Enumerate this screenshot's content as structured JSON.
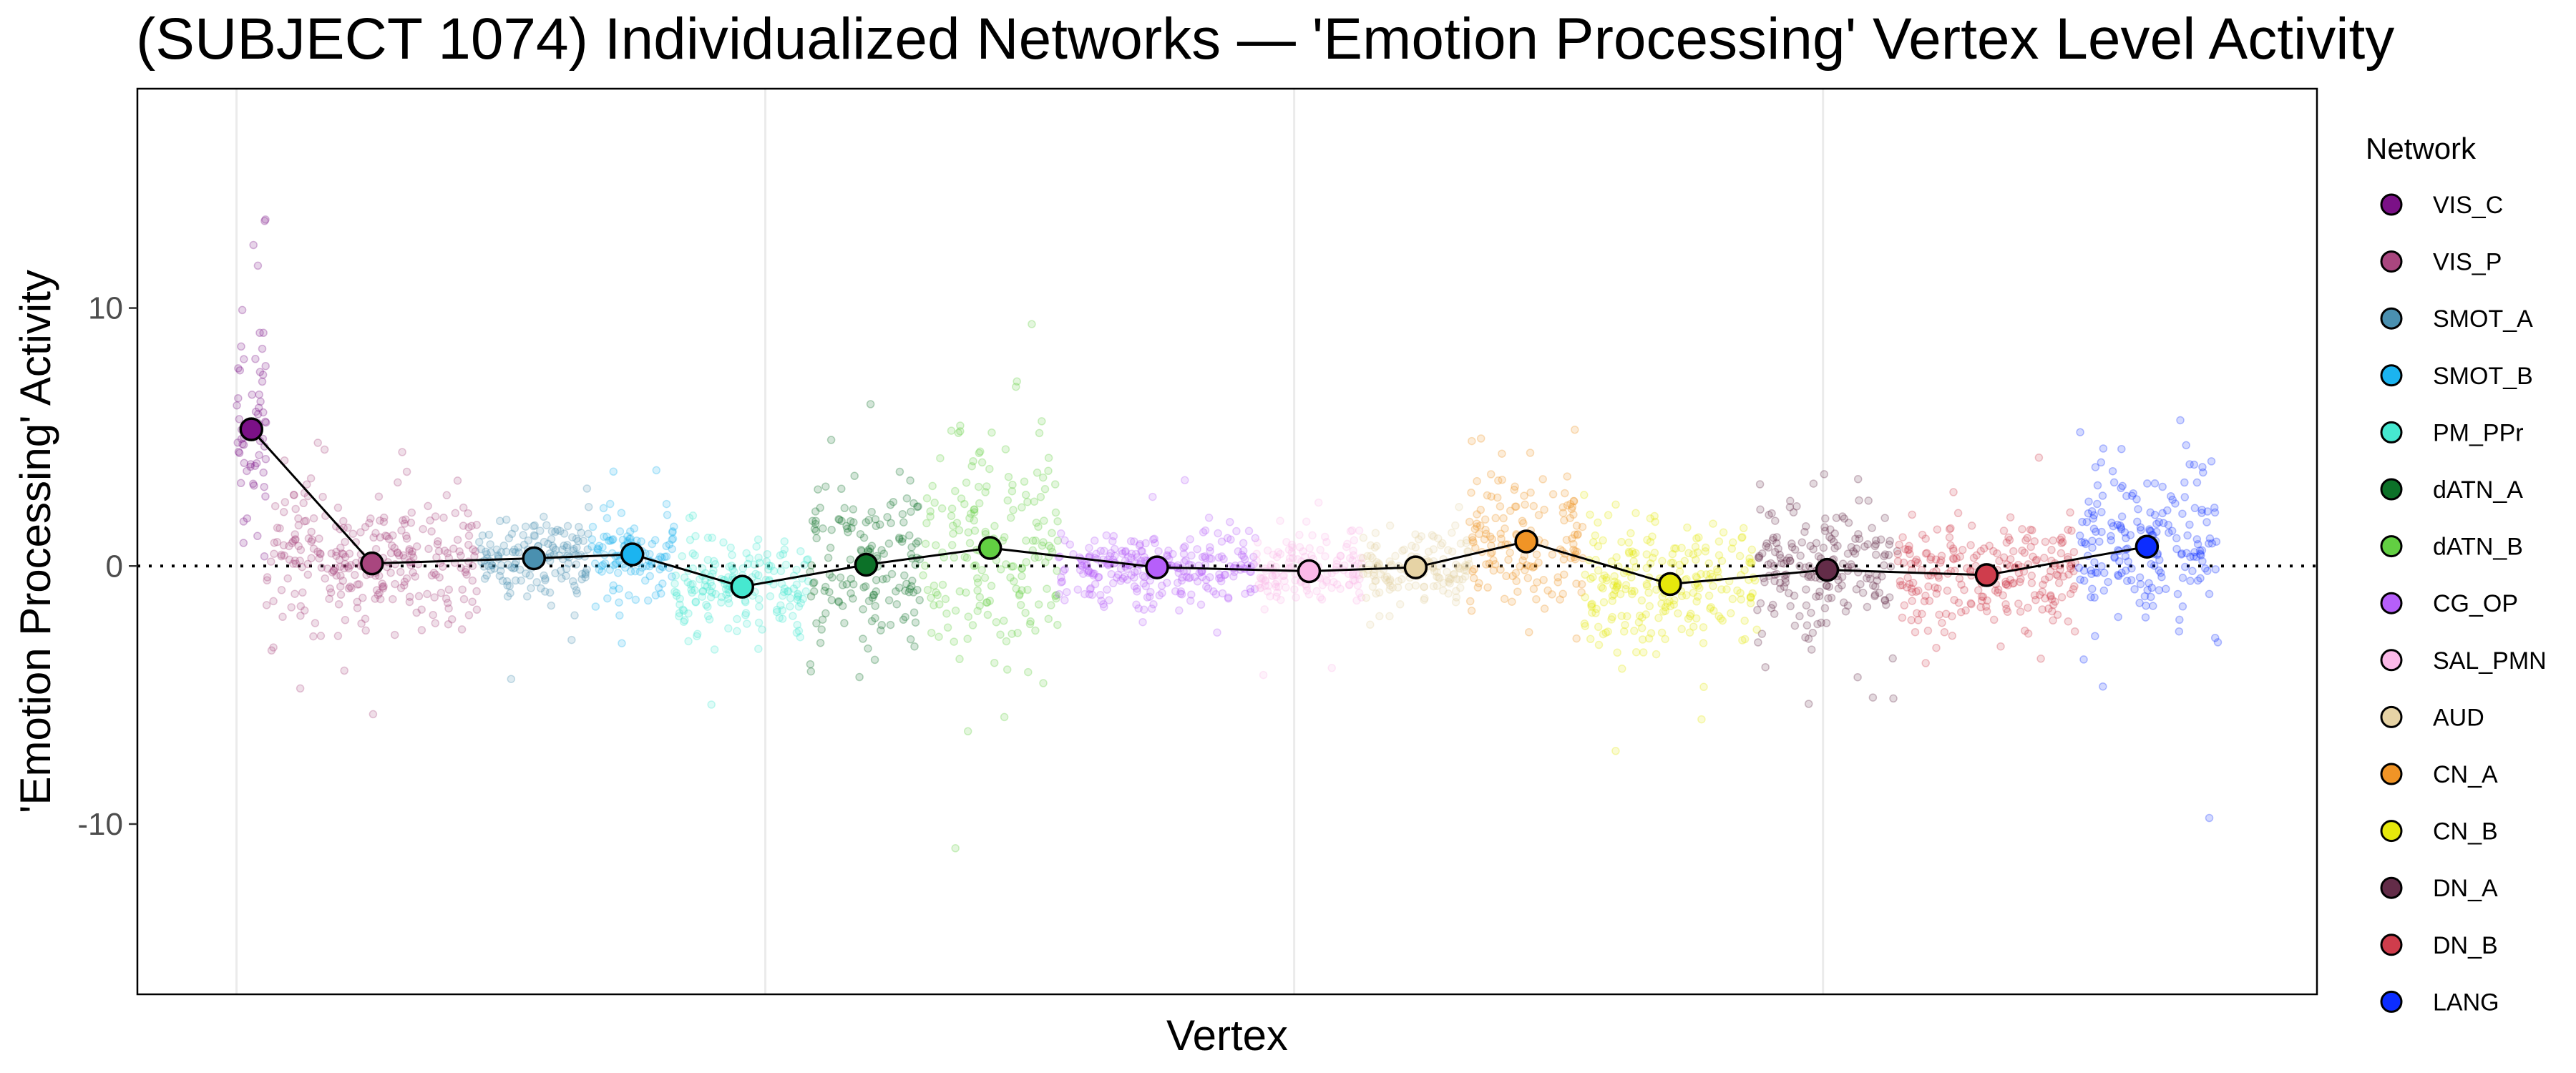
{
  "chart_data": {
    "type": "scatter",
    "title": "(SUBJECT 1074) Individualized Networks — 'Emotion Processing' Vertex Level Activity",
    "xlabel": "Vertex",
    "ylabel": "'Emotion Processing' Activity",
    "xlim": [
      -937,
      19670
    ],
    "ylim": [
      -16.6,
      18.5
    ],
    "x_breaks": [
      0,
      5000,
      10000,
      15000
    ],
    "y_ticks": [
      -10,
      0,
      10
    ],
    "y_tick_labels": [
      "-10",
      "0",
      "10"
    ],
    "reference_line_y": 0,
    "grid": "vertical-major-only",
    "legend": {
      "title": "Network",
      "position": "right"
    },
    "series": [
      {
        "name": "VIS_C",
        "color": "#7b1187",
        "x_range": [
          0,
          281
        ],
        "mean": 5.3,
        "spread": 2.4
      },
      {
        "name": "VIS_P",
        "color": "#a9467f",
        "x_range": [
          281,
          2281
        ],
        "mean": 0.1,
        "spread": 1.2
      },
      {
        "name": "SMOT_A",
        "color": "#4a90b0",
        "x_range": [
          2281,
          3344
        ],
        "mean": 0.3,
        "spread": 0.7
      },
      {
        "name": "SMOT_B",
        "color": "#1bb4f0",
        "x_range": [
          3344,
          4141
        ],
        "mean": 0.45,
        "spread": 0.8
      },
      {
        "name": "PM_PPr",
        "color": "#46e8d0",
        "x_range": [
          4141,
          5422
        ],
        "mean": -0.8,
        "spread": 0.8
      },
      {
        "name": "dATN_A",
        "color": "#0c7128",
        "x_range": [
          5422,
          6484
        ],
        "mean": 0.05,
        "spread": 1.4
      },
      {
        "name": "dATN_B",
        "color": "#62cf42",
        "x_range": [
          6484,
          7766
        ],
        "mean": 0.7,
        "spread": 2.2
      },
      {
        "name": "CG_OP",
        "color": "#b65ffa",
        "x_range": [
          7766,
          9641
        ],
        "mean": -0.05,
        "spread": 0.7
      },
      {
        "name": "SAL_PMN",
        "color": "#fbb9e8",
        "x_range": [
          9641,
          10641
        ],
        "mean": -0.2,
        "spread": 0.7
      },
      {
        "name": "AUD",
        "color": "#e6d3a5",
        "x_range": [
          10641,
          11656
        ],
        "mean": -0.05,
        "spread": 0.6
      },
      {
        "name": "CN_A",
        "color": "#f09426",
        "x_range": [
          11656,
          12734
        ],
        "mean": 0.95,
        "spread": 1.2
      },
      {
        "name": "CN_B",
        "color": "#e6e80c",
        "x_range": [
          12734,
          14375
        ],
        "mean": -0.7,
        "spread": 1.1
      },
      {
        "name": "DN_A",
        "color": "#632c48",
        "x_range": [
          14375,
          15703
        ],
        "mean": -0.15,
        "spread": 1.2
      },
      {
        "name": "DN_B",
        "color": "#cf3d4c",
        "x_range": [
          15703,
          17391
        ],
        "mean": -0.35,
        "spread": 1.0
      },
      {
        "name": "LANG",
        "color": "#0c2dff",
        "x_range": [
          17391,
          18734
        ],
        "mean": 0.75,
        "spread": 1.5
      }
    ]
  }
}
